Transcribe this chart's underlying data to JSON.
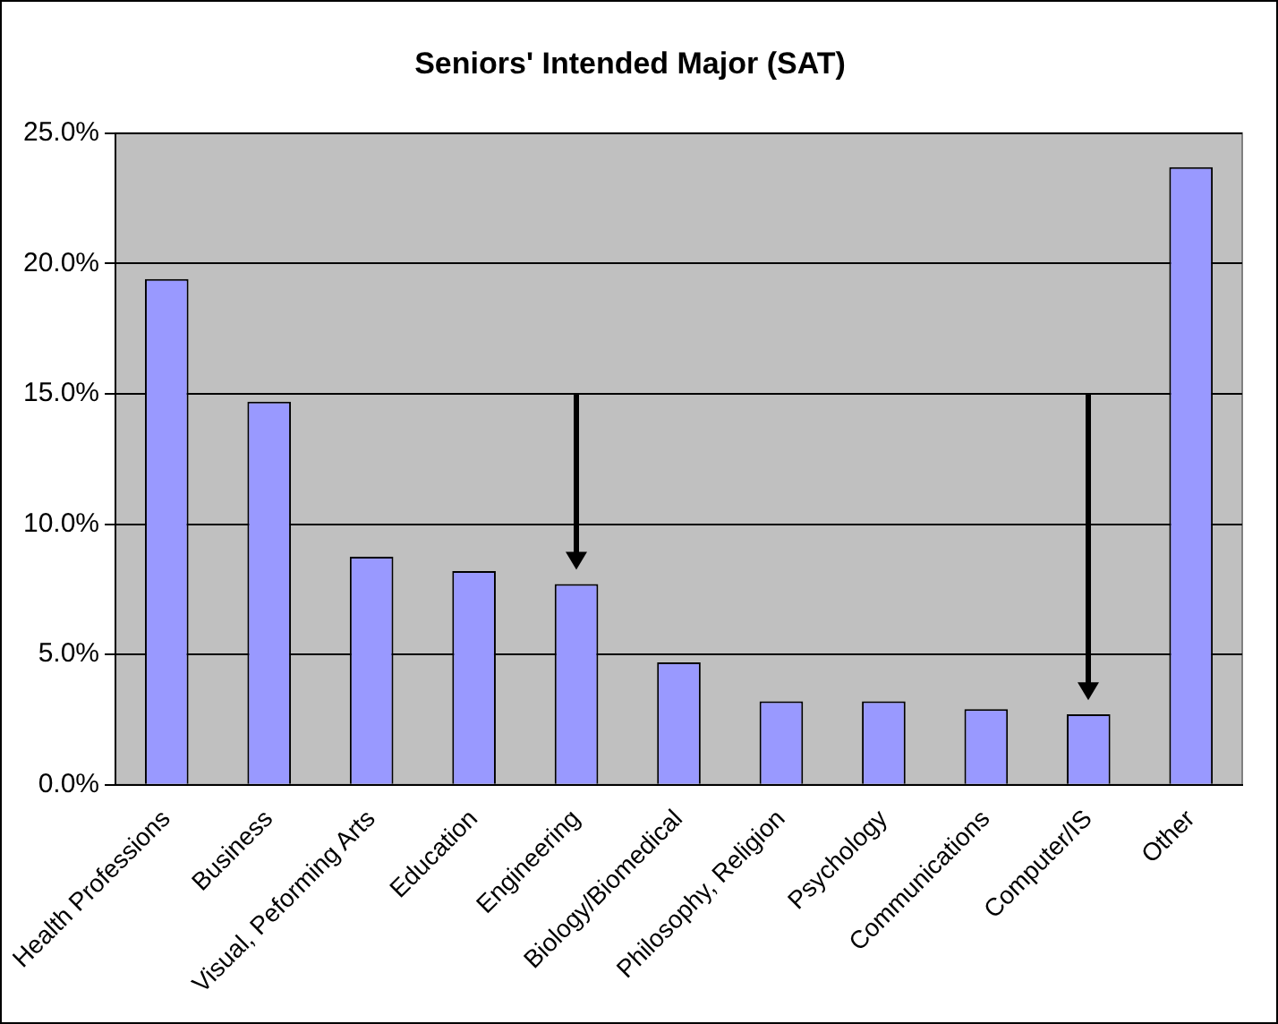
{
  "chart_data": {
    "type": "bar",
    "title": "Seniors' Intended Major (SAT)",
    "categories": [
      "Health Professions",
      "Business",
      "Visual, Peforming Arts",
      "Education",
      "Engineering",
      "Biology/Biomedical",
      "Philosophy, Religion",
      "Psychology",
      "Communications",
      "Computer/IS",
      "Other"
    ],
    "values": [
      19.4,
      14.7,
      8.75,
      8.2,
      7.7,
      4.7,
      3.2,
      3.2,
      2.9,
      2.7,
      23.7
    ],
    "color": "#9999ff",
    "ylim": [
      0,
      25
    ],
    "yticks": [
      {
        "value": 0,
        "label": "0.0%"
      },
      {
        "value": 5,
        "label": "5.0%"
      },
      {
        "value": 10,
        "label": "10.0%"
      },
      {
        "value": 15,
        "label": "15.0%"
      },
      {
        "value": 20,
        "label": "20.0%"
      },
      {
        "value": 25,
        "label": "25.0%"
      }
    ],
    "grid": "y",
    "legend": false
  }
}
